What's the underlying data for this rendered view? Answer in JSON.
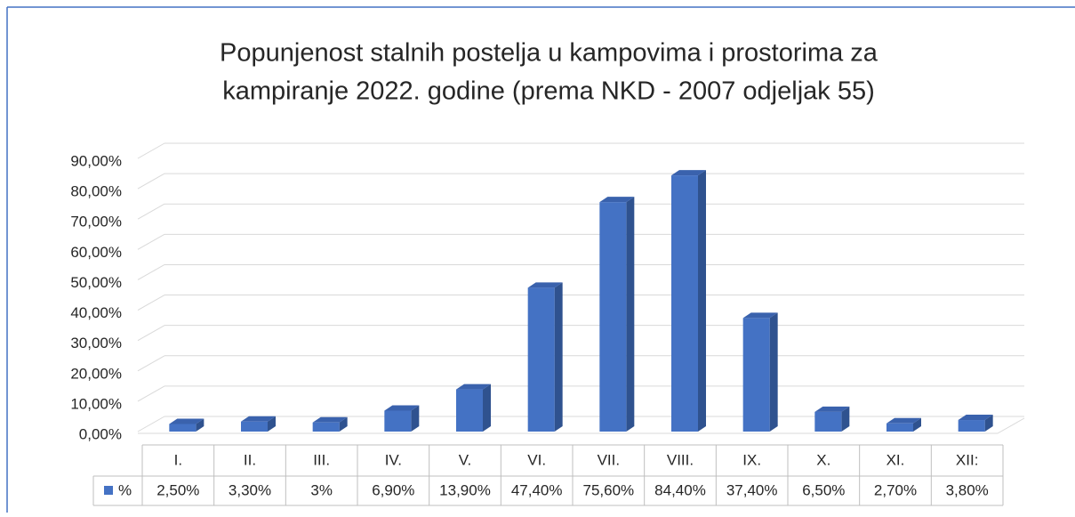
{
  "chart_data": {
    "type": "bar3d",
    "title": [
      "Popunjenost stalnih postelja u kampovima i prostorima za",
      "kampiranje 2022. godine (prema NKD - 2007 odjeljak 55)"
    ],
    "categories": [
      "I.",
      "II.",
      "III.",
      "IV.",
      "V.",
      "VI.",
      "VII.",
      "VIII.",
      "IX.",
      "X.",
      "XI.",
      "XII:"
    ],
    "series": [
      {
        "name": "%",
        "color": "#4472c4",
        "values": [
          2.5,
          3.3,
          3,
          6.9,
          13.9,
          47.4,
          75.6,
          84.4,
          37.4,
          6.5,
          2.7,
          3.8
        ],
        "value_labels": [
          "2,50%",
          "3,30%",
          "3%",
          "6,90%",
          "13,90%",
          "47,40%",
          "75,60%",
          "84,40%",
          "37,40%",
          "6,50%",
          "2,70%",
          "3,80%"
        ]
      }
    ],
    "ylim": [
      0,
      90
    ],
    "yticks": [
      {
        "value": 0,
        "label": "0,00%"
      },
      {
        "value": 10,
        "label": "10,00%"
      },
      {
        "value": 20,
        "label": "20,00%"
      },
      {
        "value": 30,
        "label": "30,00%"
      },
      {
        "value": 40,
        "label": "40,00%"
      },
      {
        "value": 50,
        "label": "50,00%"
      },
      {
        "value": 60,
        "label": "60,00%"
      },
      {
        "value": 70,
        "label": "70,00%"
      },
      {
        "value": 80,
        "label": "80,00%"
      },
      {
        "value": 90,
        "label": "90,00%"
      }
    ],
    "grid": true
  }
}
